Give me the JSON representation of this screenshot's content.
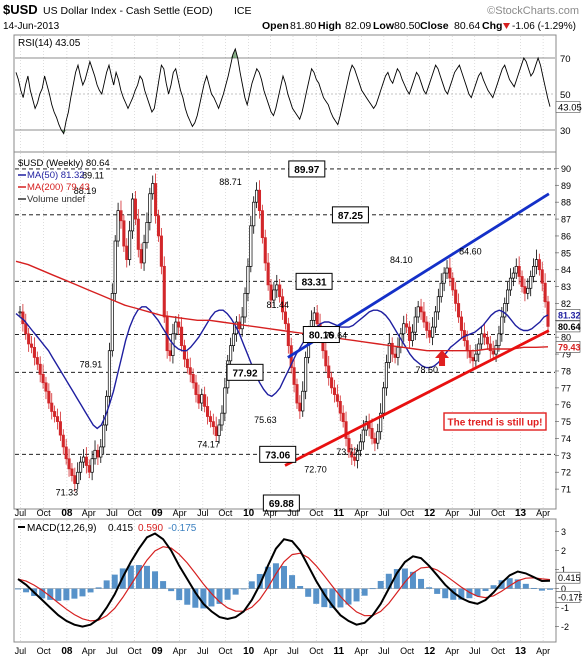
{
  "header": {
    "symbol": "$USD",
    "name": "US Dollar Index - Cash Settle (EOD)",
    "exchange": "ICE",
    "watermark": "©StockCharts.com",
    "date": "14-Jun-2013",
    "open_label": "Open",
    "open": "81.80",
    "high_label": "High",
    "high": "82.09",
    "low_label": "Low",
    "low": "80.50",
    "close_label": "Close",
    "close": "80.64",
    "chg_label": "Chg",
    "chg": "-1.06 (-1.29%)",
    "chg_icon": "down-triangle-icon"
  },
  "colors": {
    "price_up": "#000000",
    "price_down": "#d2272a",
    "ma50": "#1f1fa0",
    "ma200": "#d62020",
    "trend_blue": "#1430c8",
    "trend_red": "#e81010",
    "macd_hist": "#3a7fbf",
    "rsi_fill": "#5a8f5a",
    "arrow": "#e02020"
  },
  "rsi": {
    "label": "RSI(14) 43.05",
    "last": "43.05",
    "ticks": [
      "70",
      "50",
      "30"
    ],
    "ylim": [
      20,
      80
    ],
    "values": [
      62,
      58,
      52,
      48,
      55,
      60,
      52,
      47,
      42,
      45,
      50,
      53,
      60,
      55,
      50,
      44,
      40,
      37,
      33,
      30,
      28,
      35,
      40,
      48,
      55,
      62,
      66,
      60,
      55,
      58,
      63,
      68,
      64,
      60,
      55,
      52,
      50,
      56,
      62,
      66,
      60,
      55,
      62,
      58,
      52,
      48,
      45,
      42,
      45,
      48,
      52,
      55,
      60,
      58,
      52,
      48,
      44,
      40,
      42,
      50,
      58,
      66,
      64,
      56,
      50,
      55,
      62,
      64,
      58,
      52,
      48,
      42,
      38,
      35,
      32,
      34,
      38,
      44,
      50,
      56,
      60,
      55,
      50,
      48,
      45,
      42,
      46,
      50,
      55,
      60,
      66,
      72,
      75,
      70,
      62,
      55,
      48,
      44,
      50,
      56,
      60,
      64,
      62,
      58,
      52,
      48,
      44,
      40,
      38,
      42,
      48,
      54,
      60,
      56,
      50,
      46,
      42,
      40,
      38,
      36,
      40,
      46,
      52,
      58,
      64,
      62,
      58,
      56,
      52,
      48,
      46,
      44,
      40,
      37,
      35,
      33,
      38,
      44,
      50,
      56,
      62,
      66,
      64,
      60,
      56,
      52,
      50,
      48,
      46,
      44,
      42,
      44,
      48,
      52,
      56,
      60,
      62,
      58,
      56,
      60,
      64,
      62,
      58,
      55,
      52,
      50,
      54,
      58,
      62,
      60,
      56,
      52,
      50,
      54,
      58,
      62,
      66,
      64,
      60,
      56,
      52,
      50,
      54,
      58,
      62,
      64,
      66,
      62,
      58,
      54,
      50,
      48,
      52,
      56,
      60,
      62,
      58,
      55,
      52,
      50,
      48,
      52,
      56,
      60,
      64,
      66,
      62,
      58,
      56,
      54,
      58,
      62,
      66,
      70,
      68,
      64,
      60,
      62,
      66,
      70,
      66,
      60,
      54,
      48,
      43
    ]
  },
  "price": {
    "legend_main": "$USD (Weekly) 80.64",
    "legend_ma50": "MA(50) 81.32",
    "legend_ma200": "MA(200) 79.43",
    "legend_volume": "Volume undef",
    "yticks": [
      "90",
      "89",
      "88",
      "87",
      "86",
      "85",
      "84",
      "83",
      "82",
      "81",
      "80",
      "79",
      "78",
      "77",
      "76",
      "75",
      "74",
      "73",
      "72",
      "71"
    ],
    "ylim": [
      70,
      90.5
    ],
    "peak_labels": [
      {
        "text": "88.19",
        "x": 9.5,
        "y": 88.19,
        "pos": "above"
      },
      {
        "text": "89.11",
        "x": 10.6,
        "y": 89.11,
        "pos": "above"
      },
      {
        "text": "78.91",
        "x": 10.3,
        "y": 78.91,
        "pos": "below"
      },
      {
        "text": "71.33",
        "x": 7.0,
        "y": 71.33,
        "pos": "below"
      },
      {
        "text": "88.71",
        "x": 29.5,
        "y": 88.71,
        "pos": "above"
      },
      {
        "text": "74.17",
        "x": 26.5,
        "y": 74.17,
        "pos": "below"
      },
      {
        "text": "81.44",
        "x": 36.0,
        "y": 81.44,
        "pos": "above"
      },
      {
        "text": "75.63",
        "x": 34.3,
        "y": 75.63,
        "pos": "below"
      },
      {
        "text": "72.70",
        "x": 41.2,
        "y": 72.7,
        "pos": "below"
      },
      {
        "text": "73.72",
        "x": 45.6,
        "y": 73.72,
        "pos": "below"
      },
      {
        "text": "79.64",
        "x": 44.0,
        "y": 79.64,
        "pos": "above"
      },
      {
        "text": "84.10",
        "x": 53.0,
        "y": 84.1,
        "pos": "above"
      },
      {
        "text": "78.60",
        "x": 56.5,
        "y": 78.6,
        "pos": "below"
      },
      {
        "text": "84.60",
        "x": 62.5,
        "y": 84.6,
        "pos": "above"
      }
    ],
    "levels": [
      {
        "text": "89.97",
        "value": 89.97,
        "x": 40.0
      },
      {
        "text": "87.25",
        "value": 87.25,
        "x": 46.0
      },
      {
        "text": "83.31",
        "value": 83.31,
        "x": 41.0
      },
      {
        "text": "80.16",
        "value": 80.16,
        "x": 42.0
      },
      {
        "text": "77.92",
        "value": 77.92,
        "x": 31.5
      },
      {
        "text": "73.06",
        "value": 73.06,
        "x": 36.0
      },
      {
        "text": "69.88",
        "value": 69.88,
        "x": 36.5
      }
    ],
    "last_price_tag": "80.64",
    "last_ma50_tag": "81.32",
    "last_ma200_tag": "79.43",
    "annotation": "The trend is still up!",
    "annotation_icon": "up-arrow-icon"
  },
  "xaxis": {
    "labels": [
      {
        "text": "Jul",
        "x": 0.6
      },
      {
        "text": "Oct",
        "x": 3.8
      },
      {
        "text": "08",
        "x": 7.0,
        "bold": true
      },
      {
        "text": "Apr",
        "x": 10.0
      },
      {
        "text": "Jul",
        "x": 13.2
      },
      {
        "text": "Oct",
        "x": 16.3
      },
      {
        "text": "09",
        "x": 19.4,
        "bold": true
      },
      {
        "text": "Apr",
        "x": 22.5
      },
      {
        "text": "Jul",
        "x": 25.7
      },
      {
        "text": "Oct",
        "x": 28.8
      },
      {
        "text": "10",
        "x": 32.0,
        "bold": true
      },
      {
        "text": "Apr",
        "x": 35.0
      },
      {
        "text": "Jul",
        "x": 38.1
      },
      {
        "text": "Oct",
        "x": 41.3
      },
      {
        "text": "11",
        "x": 44.4,
        "bold": true
      },
      {
        "text": "Apr",
        "x": 47.5
      },
      {
        "text": "Jul",
        "x": 50.6
      },
      {
        "text": "Oct",
        "x": 53.8
      },
      {
        "text": "12",
        "x": 56.9,
        "bold": true
      },
      {
        "text": "Apr",
        "x": 60.0
      },
      {
        "text": "Jul",
        "x": 63.1
      },
      {
        "text": "Oct",
        "x": 66.3
      },
      {
        "text": "13",
        "x": 69.4,
        "bold": true
      },
      {
        "text": "Apr",
        "x": 72.5
      }
    ]
  },
  "macd": {
    "label_main": "MACD(12,26,9)",
    "value1": "0.415",
    "value2": "0.590",
    "value3": "-0.175",
    "yticks": [
      "3",
      "2",
      "1",
      "0",
      "-1",
      "-2"
    ],
    "ylim": [
      -2.6,
      3.4
    ],
    "last_tag_1": "0.415",
    "last_tag_2": "-0.175"
  },
  "chart_data": {
    "type": "line",
    "title": "$USD US Dollar Index - Cash Settle (EOD) ICE",
    "xlabel": "",
    "ylabel": "",
    "ylim": [
      70,
      90.5
    ],
    "series": [
      {
        "name": "$USD (Weekly) 80.64",
        "values": [
          81.5,
          80.8,
          80.2,
          79.6,
          79.4,
          78.8,
          78.4,
          77.8,
          77.3,
          76.8,
          76.1,
          75.6,
          75.3,
          75.0,
          74.2,
          73.5,
          72.8,
          72.2,
          71.8,
          71.33,
          72.0,
          72.6,
          72.9,
          72.4,
          72.0,
          72.8,
          73.3,
          72.9,
          73.5,
          74.8,
          76.5,
          79.2,
          82.6,
          85.7,
          87.5,
          86.9,
          85.4,
          84.6,
          86.3,
          88.19,
          87.0,
          85.2,
          84.4,
          85.6,
          86.8,
          88.5,
          89.11,
          87.2,
          86.0,
          84.2,
          81.2,
          79.2,
          78.91,
          80.2,
          80.9,
          80.6,
          79.5,
          78.7,
          78.2,
          77.8,
          77.3,
          76.6,
          76.1,
          76.6,
          75.9,
          75.3,
          75.0,
          74.7,
          74.17,
          74.8,
          75.5,
          77.0,
          78.6,
          79.5,
          80.2,
          80.9,
          80.5,
          81.2,
          82.6,
          84.2,
          86.6,
          88.0,
          88.71,
          87.5,
          85.9,
          84.4,
          83.1,
          82.2,
          82.8,
          83.1,
          82.4,
          81.5,
          80.8,
          79.5,
          78.2,
          77.2,
          76.1,
          75.63,
          76.8,
          78.8,
          80.2,
          81.0,
          81.44,
          80.8,
          80.0,
          79.2,
          78.3,
          77.6,
          77.0,
          76.6,
          76.2,
          75.5,
          75.0,
          74.0,
          73.2,
          72.9,
          72.7,
          73.3,
          73.8,
          74.5,
          75.0,
          74.6,
          74.0,
          73.72,
          74.4,
          75.5,
          77.0,
          78.5,
          79.64,
          79.0,
          78.8,
          79.4,
          80.2,
          80.8,
          80.6,
          79.8,
          80.3,
          81.2,
          81.8,
          81.5,
          80.9,
          80.4,
          80.0,
          80.6,
          81.5,
          82.4,
          83.2,
          83.8,
          84.1,
          83.5,
          82.8,
          82.0,
          81.2,
          80.4,
          79.8,
          79.2,
          78.8,
          78.6,
          79.0,
          79.6,
          80.2,
          80.0,
          79.6,
          79.2,
          79.0,
          79.5,
          80.2,
          81.2,
          82.0,
          82.8,
          83.5,
          83.8,
          84.2,
          83.6,
          83.0,
          82.6,
          82.9,
          83.6,
          84.2,
          84.6,
          84.0,
          83.2,
          82.1,
          80.64
        ]
      },
      {
        "name": "MA(50) 81.32",
        "values": [
          81.4,
          81.2,
          81.0,
          80.7,
          80.4,
          80.1,
          79.8,
          79.5,
          79.2,
          78.8,
          78.4,
          78.0,
          77.6,
          77.2,
          76.8,
          76.4,
          76.0,
          75.6,
          75.2,
          74.8,
          74.6,
          74.8,
          75.3,
          76.0,
          76.8,
          77.8,
          78.8,
          79.8,
          80.6,
          81.2,
          81.6,
          81.8,
          81.8,
          81.6,
          81.3,
          81.0,
          80.6,
          80.2,
          79.8,
          79.5,
          79.3,
          79.2,
          79.2,
          79.4,
          79.7,
          80.0,
          80.4,
          80.8,
          81.2,
          81.5,
          81.6,
          81.6,
          81.4,
          81.1,
          80.7,
          80.2,
          79.6,
          79.0,
          78.4,
          77.8,
          77.3,
          76.9,
          76.6,
          76.5,
          76.7,
          77.0,
          77.5,
          78.0,
          78.5,
          79.0,
          79.4,
          79.8,
          80.1,
          80.4,
          80.6,
          80.8,
          80.9,
          80.9,
          80.8,
          80.7,
          80.6,
          80.6,
          80.6,
          80.7,
          80.9,
          81.1,
          81.3,
          81.5,
          81.6,
          81.6,
          81.5,
          81.3,
          81.0,
          80.6,
          80.2,
          79.8,
          79.4,
          79.0,
          78.7,
          78.5,
          78.3,
          78.2,
          78.2,
          78.3,
          78.5,
          78.8,
          79.1,
          79.4,
          79.6,
          79.8,
          80.0,
          80.1,
          80.2,
          80.3,
          80.5,
          80.7,
          81.0,
          81.3,
          81.5,
          81.6,
          81.5,
          81.3,
          81.0,
          80.7,
          80.5,
          80.4,
          80.4,
          80.5,
          80.7,
          80.9,
          81.2,
          81.32
        ]
      },
      {
        "name": "MA(200) 79.43",
        "values": [
          84.5,
          84.3,
          84.0,
          83.7,
          83.4,
          83.1,
          82.8,
          82.5,
          82.2,
          81.9,
          81.7,
          81.5,
          81.3,
          81.2,
          81.1,
          81.0,
          81.0,
          80.9,
          80.8,
          80.7,
          80.6,
          80.5,
          80.4,
          80.3,
          80.2,
          80.1,
          80.0,
          79.9,
          79.8,
          79.7,
          79.6,
          79.5,
          79.4,
          79.3,
          79.2,
          79.2,
          79.2,
          79.2,
          79.2,
          79.3,
          79.3,
          79.3,
          79.4,
          79.4,
          79.43
        ]
      },
      {
        "name": "MACD(12,26,9)",
        "values": [
          0.5,
          0.2,
          -0.2,
          -0.6,
          -1.0,
          -1.4,
          -1.7,
          -1.9,
          -2.0,
          -1.9,
          -1.6,
          -1.0,
          -0.3,
          0.6,
          1.4,
          2.1,
          2.7,
          2.9,
          2.6,
          2.0,
          1.2,
          0.5,
          -0.2,
          -0.8,
          -1.2,
          -1.5,
          -1.6,
          -1.5,
          -1.2,
          -0.6,
          0.2,
          1.2,
          2.1,
          2.6,
          2.5,
          2.0,
          1.2,
          0.4,
          -0.3,
          -0.9,
          -1.4,
          -1.7,
          -1.9,
          -1.8,
          -1.4,
          -0.8,
          0.0,
          0.8,
          1.4,
          1.7,
          1.6,
          1.2,
          0.7,
          0.2,
          -0.2,
          -0.5,
          -0.7,
          -0.8,
          -0.6,
          -0.2,
          0.3,
          0.7,
          0.9,
          0.8,
          0.6,
          0.4,
          0.415
        ]
      }
    ]
  }
}
